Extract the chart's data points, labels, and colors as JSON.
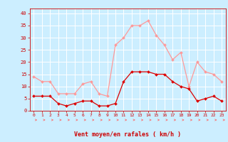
{
  "hours": [
    0,
    1,
    2,
    3,
    4,
    5,
    6,
    7,
    8,
    9,
    10,
    11,
    12,
    13,
    14,
    15,
    16,
    17,
    18,
    19,
    20,
    21,
    22,
    23
  ],
  "mean_wind": [
    6,
    6,
    6,
    3,
    2,
    3,
    4,
    4,
    2,
    2,
    3,
    12,
    16,
    16,
    16,
    15,
    15,
    12,
    10,
    9,
    4,
    5,
    6,
    4
  ],
  "gusts": [
    14,
    12,
    12,
    7,
    7,
    7,
    11,
    12,
    7,
    6,
    27,
    30,
    35,
    35,
    37,
    31,
    27,
    21,
    24,
    10,
    20,
    16,
    15,
    12
  ],
  "xlabel": "Vent moyen/en rafales ( km/h )",
  "ylim": [
    0,
    42
  ],
  "yticks": [
    0,
    5,
    10,
    15,
    20,
    25,
    30,
    35,
    40
  ],
  "xticks": [
    0,
    1,
    2,
    3,
    4,
    5,
    6,
    7,
    8,
    9,
    10,
    11,
    12,
    13,
    14,
    15,
    16,
    17,
    18,
    19,
    20,
    21,
    22,
    23
  ],
  "bg_color": "#cceeff",
  "grid_color": "#ffffff",
  "mean_color": "#dd0000",
  "gust_color": "#ff9999",
  "arrow_color": "#ff6666",
  "xlabel_color": "#cc0000",
  "tick_color": "#cc0000",
  "xlim_left": -0.5,
  "xlim_right": 23.5
}
